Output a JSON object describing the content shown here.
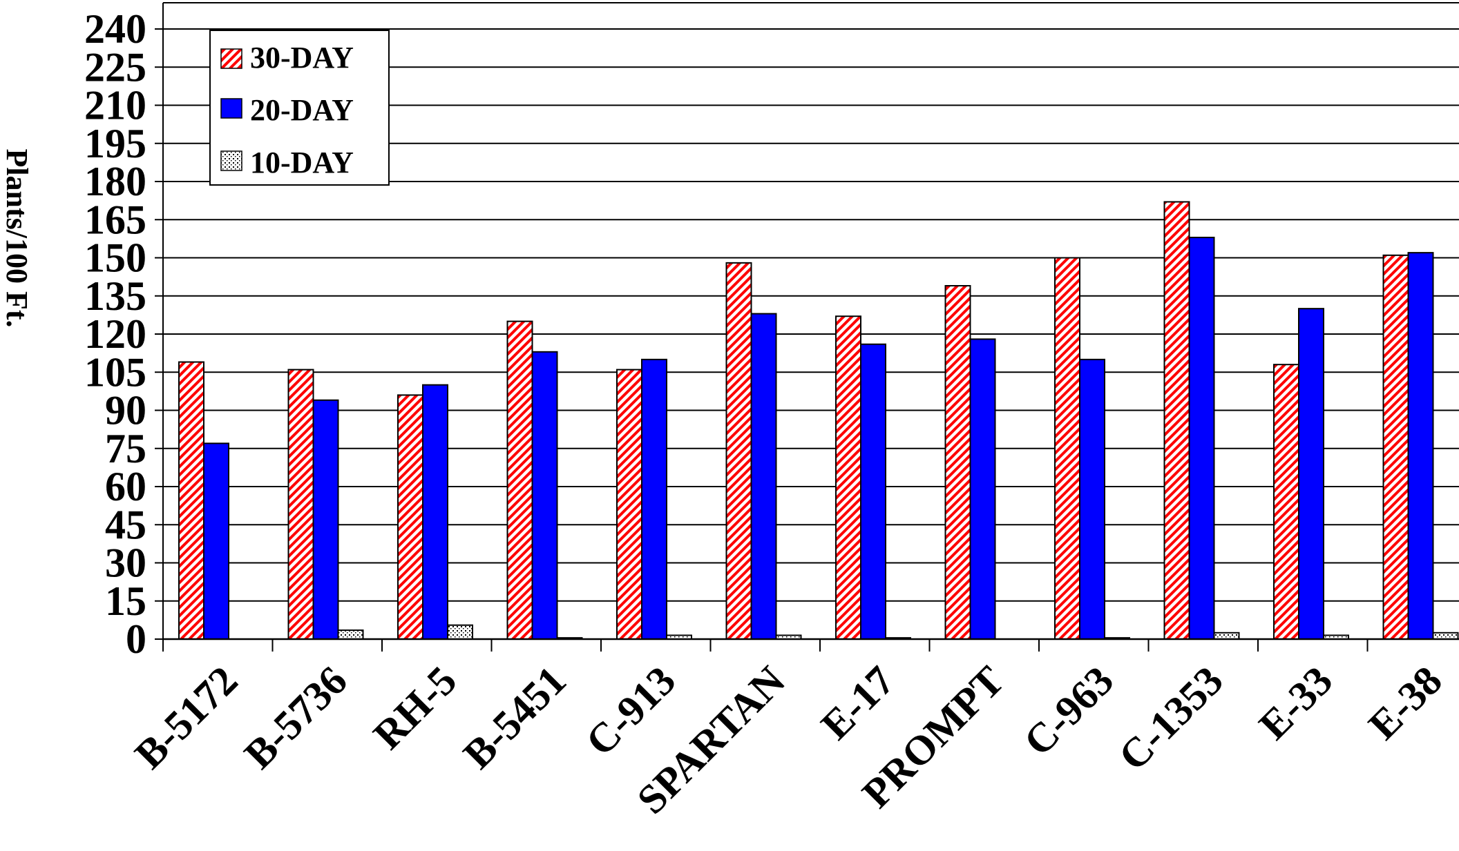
{
  "chart_data": {
    "type": "bar",
    "ylabel": "Plants/100 Ft.",
    "ylim": [
      0,
      240
    ],
    "yticks": [
      0,
      15,
      30,
      45,
      60,
      75,
      90,
      105,
      120,
      135,
      150,
      165,
      180,
      195,
      210,
      225,
      240
    ],
    "grid": true,
    "legend_position": "top-left",
    "categories": [
      "B-5172",
      "B-5736",
      "RH-5",
      "B-5451",
      "C-913",
      "SPARTAN",
      "E-17",
      "PROMPT",
      "C-963",
      "C-1353",
      "E-33",
      "E-38"
    ],
    "series": [
      {
        "name": "30-DAY",
        "pattern": "red-diagonal-stripes",
        "color": "#ff0000",
        "values": [
          109,
          106,
          96,
          125,
          106,
          148,
          127,
          139,
          150,
          172,
          108,
          151
        ]
      },
      {
        "name": "20-DAY",
        "pattern": "solid",
        "color": "#0000ff",
        "values": [
          77,
          94,
          100,
          113,
          110,
          128,
          116,
          118,
          110,
          158,
          130,
          152
        ]
      },
      {
        "name": "10-DAY",
        "pattern": "black-dots",
        "color": "#000000",
        "values": [
          0,
          3.5,
          5.5,
          0.5,
          1.5,
          1.5,
          0.5,
          0,
          0.5,
          2.5,
          1.5,
          2.5
        ]
      }
    ]
  }
}
